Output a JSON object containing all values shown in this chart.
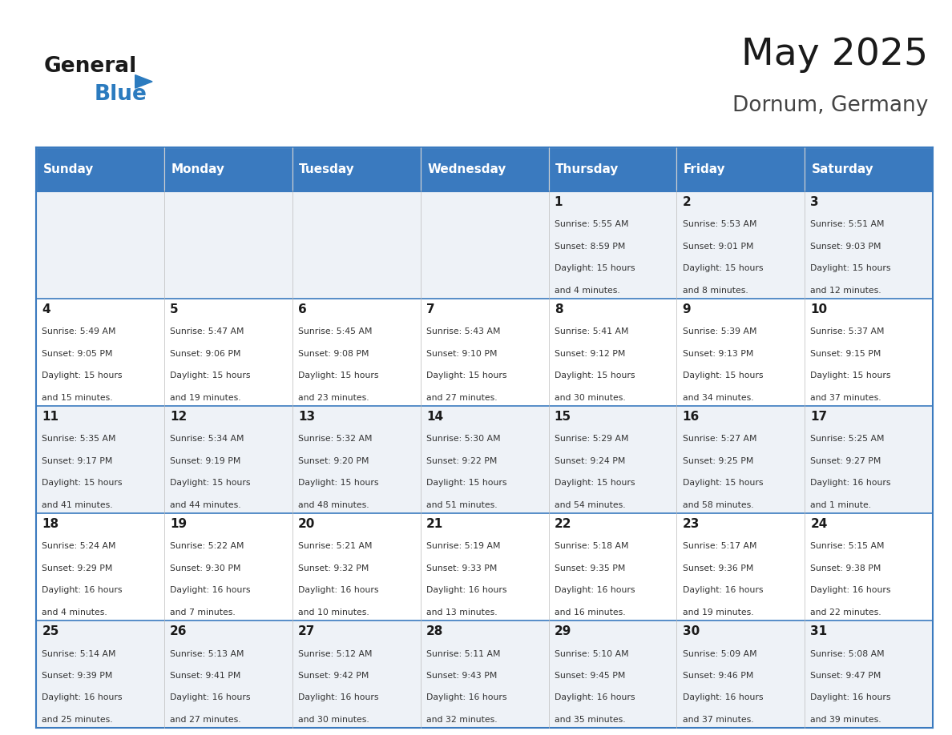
{
  "title": "May 2025",
  "subtitle": "Dornum, Germany",
  "header_color": "#3a7abf",
  "header_text_color": "#ffffff",
  "cell_bg_even": "#eef2f7",
  "cell_bg_odd": "#ffffff",
  "day_number_color": "#1a1a1a",
  "info_text_color": "#333333",
  "border_color": "#3a7abf",
  "days_of_week": [
    "Sunday",
    "Monday",
    "Tuesday",
    "Wednesday",
    "Thursday",
    "Friday",
    "Saturday"
  ],
  "weeks": [
    [
      {
        "day": "",
        "sunrise": "",
        "sunset": "",
        "daylight": ""
      },
      {
        "day": "",
        "sunrise": "",
        "sunset": "",
        "daylight": ""
      },
      {
        "day": "",
        "sunrise": "",
        "sunset": "",
        "daylight": ""
      },
      {
        "day": "",
        "sunrise": "",
        "sunset": "",
        "daylight": ""
      },
      {
        "day": "1",
        "sunrise": "5:55 AM",
        "sunset": "8:59 PM",
        "daylight": "15 hours and 4 minutes."
      },
      {
        "day": "2",
        "sunrise": "5:53 AM",
        "sunset": "9:01 PM",
        "daylight": "15 hours and 8 minutes."
      },
      {
        "day": "3",
        "sunrise": "5:51 AM",
        "sunset": "9:03 PM",
        "daylight": "15 hours and 12 minutes."
      }
    ],
    [
      {
        "day": "4",
        "sunrise": "5:49 AM",
        "sunset": "9:05 PM",
        "daylight": "15 hours and 15 minutes."
      },
      {
        "day": "5",
        "sunrise": "5:47 AM",
        "sunset": "9:06 PM",
        "daylight": "15 hours and 19 minutes."
      },
      {
        "day": "6",
        "sunrise": "5:45 AM",
        "sunset": "9:08 PM",
        "daylight": "15 hours and 23 minutes."
      },
      {
        "day": "7",
        "sunrise": "5:43 AM",
        "sunset": "9:10 PM",
        "daylight": "15 hours and 27 minutes."
      },
      {
        "day": "8",
        "sunrise": "5:41 AM",
        "sunset": "9:12 PM",
        "daylight": "15 hours and 30 minutes."
      },
      {
        "day": "9",
        "sunrise": "5:39 AM",
        "sunset": "9:13 PM",
        "daylight": "15 hours and 34 minutes."
      },
      {
        "day": "10",
        "sunrise": "5:37 AM",
        "sunset": "9:15 PM",
        "daylight": "15 hours and 37 minutes."
      }
    ],
    [
      {
        "day": "11",
        "sunrise": "5:35 AM",
        "sunset": "9:17 PM",
        "daylight": "15 hours and 41 minutes."
      },
      {
        "day": "12",
        "sunrise": "5:34 AM",
        "sunset": "9:19 PM",
        "daylight": "15 hours and 44 minutes."
      },
      {
        "day": "13",
        "sunrise": "5:32 AM",
        "sunset": "9:20 PM",
        "daylight": "15 hours and 48 minutes."
      },
      {
        "day": "14",
        "sunrise": "5:30 AM",
        "sunset": "9:22 PM",
        "daylight": "15 hours and 51 minutes."
      },
      {
        "day": "15",
        "sunrise": "5:29 AM",
        "sunset": "9:24 PM",
        "daylight": "15 hours and 54 minutes."
      },
      {
        "day": "16",
        "sunrise": "5:27 AM",
        "sunset": "9:25 PM",
        "daylight": "15 hours and 58 minutes."
      },
      {
        "day": "17",
        "sunrise": "5:25 AM",
        "sunset": "9:27 PM",
        "daylight": "16 hours and 1 minute."
      }
    ],
    [
      {
        "day": "18",
        "sunrise": "5:24 AM",
        "sunset": "9:29 PM",
        "daylight": "16 hours and 4 minutes."
      },
      {
        "day": "19",
        "sunrise": "5:22 AM",
        "sunset": "9:30 PM",
        "daylight": "16 hours and 7 minutes."
      },
      {
        "day": "20",
        "sunrise": "5:21 AM",
        "sunset": "9:32 PM",
        "daylight": "16 hours and 10 minutes."
      },
      {
        "day": "21",
        "sunrise": "5:19 AM",
        "sunset": "9:33 PM",
        "daylight": "16 hours and 13 minutes."
      },
      {
        "day": "22",
        "sunrise": "5:18 AM",
        "sunset": "9:35 PM",
        "daylight": "16 hours and 16 minutes."
      },
      {
        "day": "23",
        "sunrise": "5:17 AM",
        "sunset": "9:36 PM",
        "daylight": "16 hours and 19 minutes."
      },
      {
        "day": "24",
        "sunrise": "5:15 AM",
        "sunset": "9:38 PM",
        "daylight": "16 hours and 22 minutes."
      }
    ],
    [
      {
        "day": "25",
        "sunrise": "5:14 AM",
        "sunset": "9:39 PM",
        "daylight": "16 hours and 25 minutes."
      },
      {
        "day": "26",
        "sunrise": "5:13 AM",
        "sunset": "9:41 PM",
        "daylight": "16 hours and 27 minutes."
      },
      {
        "day": "27",
        "sunrise": "5:12 AM",
        "sunset": "9:42 PM",
        "daylight": "16 hours and 30 minutes."
      },
      {
        "day": "28",
        "sunrise": "5:11 AM",
        "sunset": "9:43 PM",
        "daylight": "16 hours and 32 minutes."
      },
      {
        "day": "29",
        "sunrise": "5:10 AM",
        "sunset": "9:45 PM",
        "daylight": "16 hours and 35 minutes."
      },
      {
        "day": "30",
        "sunrise": "5:09 AM",
        "sunset": "9:46 PM",
        "daylight": "16 hours and 37 minutes."
      },
      {
        "day": "31",
        "sunrise": "5:08 AM",
        "sunset": "9:47 PM",
        "daylight": "16 hours and 39 minutes."
      }
    ]
  ],
  "logo_text_general": "General",
  "logo_text_blue": "Blue",
  "logo_color_general": "#1a1a1a",
  "logo_color_blue": "#2b7bbf"
}
